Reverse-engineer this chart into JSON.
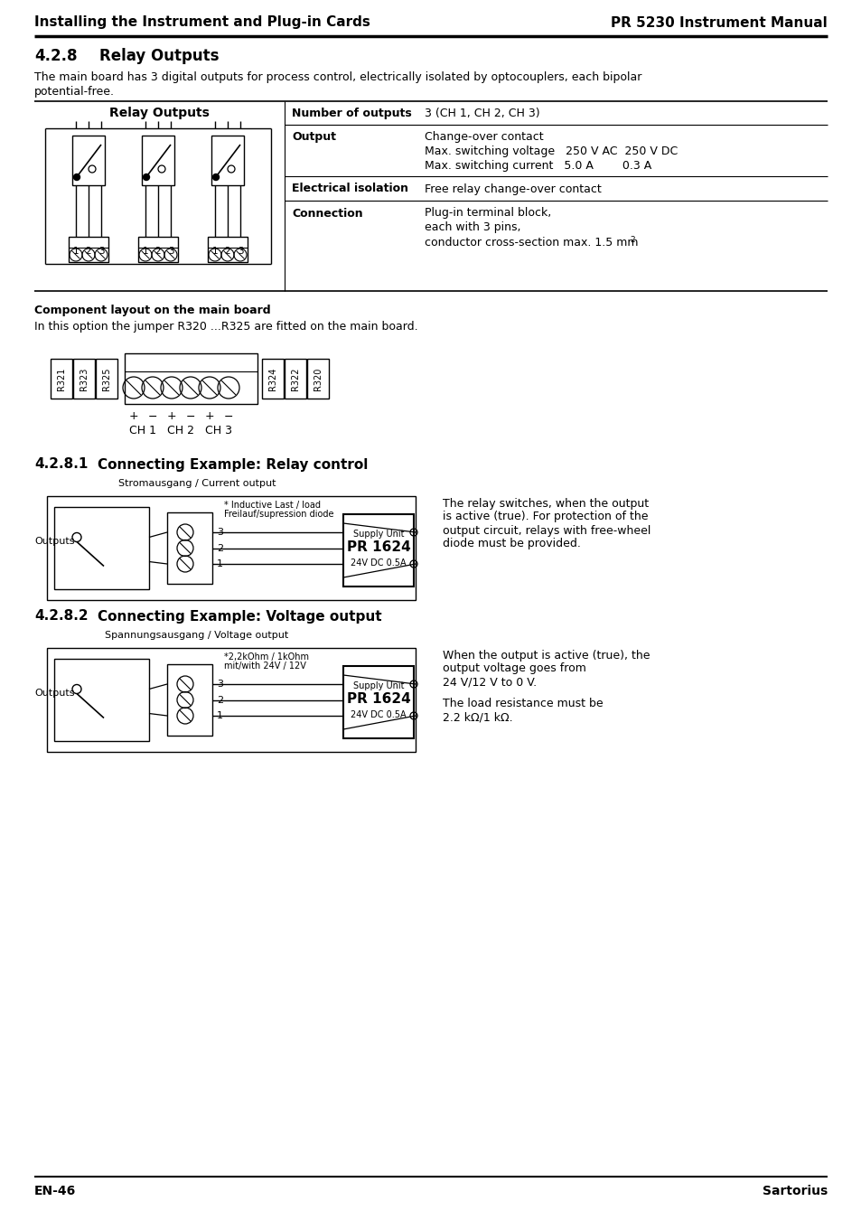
{
  "header_left": "Installing the Instrument and Plug-in Cards",
  "header_right": "PR 5230 Instrument Manual",
  "footer_left": "EN-46",
  "footer_right": "Sartorius",
  "section_428": "4.2.8",
  "section_428_title": "Relay Outputs",
  "section_428_text1": "The main board has 3 digital outputs for process control, electrically isolated by optocouplers, each bipolar",
  "section_428_text2": "potential-free.",
  "relay_outputs_label": "Relay Outputs",
  "component_layout_title": "Component layout on the main board",
  "component_layout_text": "In this option the jumper R320 ...R325 are fitted on the main board.",
  "r_labels_left": [
    "R321",
    "R323",
    "R325"
  ],
  "r_labels_right": [
    "R324",
    "R322",
    "R320"
  ],
  "ch_labels": [
    "CH 1",
    "CH 2",
    "CH 3"
  ],
  "section_4281": "4.2.8.1",
  "section_4281_title": "Connecting Example: Relay control",
  "relay_text_line1": "The relay switches, when the output",
  "relay_text_line2": "is active (true). For protection of the",
  "relay_text_line3": "output circuit, relays with free-wheel",
  "relay_text_line4": "diode must be provided.",
  "section_4282": "4.2.8.2",
  "section_4282_title": "Connecting Example: Voltage output",
  "voltage_text_line1": "When the output is active (true), the",
  "voltage_text_line2": "output voltage goes from",
  "voltage_text_line3": "24 V/12 V to 0 V.",
  "voltage_text_line5": "The load resistance must be",
  "voltage_text_line6": "2.2 kΩ/1 kΩ.",
  "stromausgang_label": "Stromausgang / Current output",
  "outputs_label": "Outputs",
  "inductive_label1": "* Inductive Last / load",
  "inductive_label2": "Freilauf/supression diode",
  "supply_unit_label": "Supply Unit",
  "pr1624_label": "PR 1624",
  "v24_label": "24V DC 0.5A",
  "spannungsausgang_label": "Spannungsausgang / Voltage output",
  "resistor_label1": "*2,2kOhm / 1kOhm",
  "resistor_label2": "mit/with 24V / 12V",
  "bg_color": "#ffffff",
  "text_color": "#000000"
}
